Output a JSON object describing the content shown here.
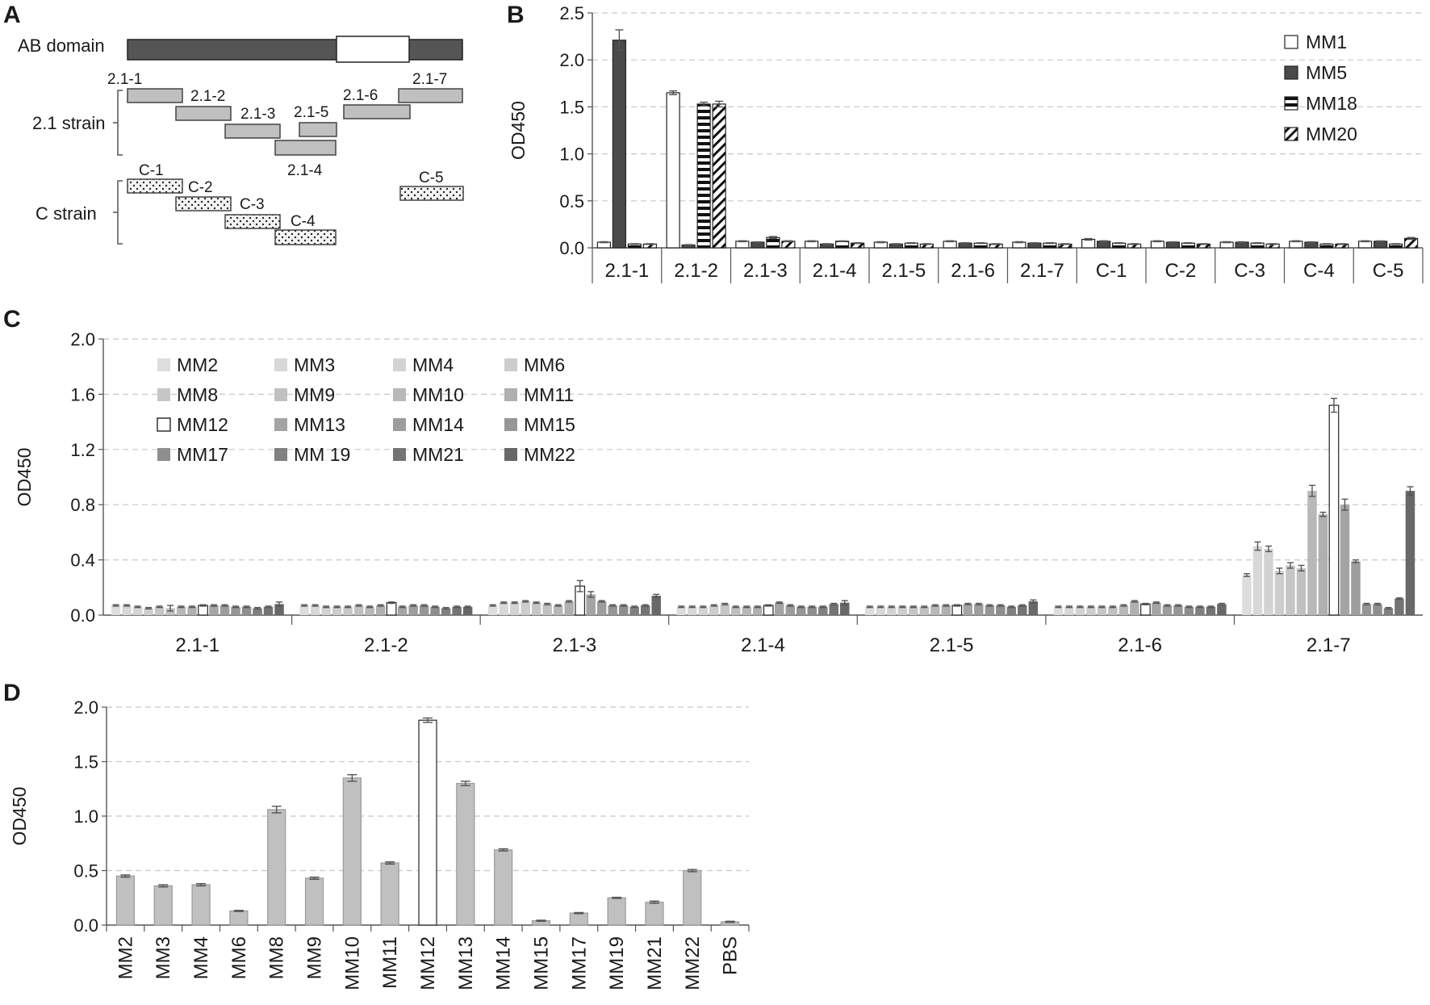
{
  "panel_letters": {
    "A": "A",
    "B": "B",
    "C": "C",
    "D": "D"
  },
  "panel_a": {
    "ab_label": "AB domain",
    "strain_21_label": "2.1 strain",
    "strain_c_label": "C strain",
    "segments_21": [
      "2.1-1",
      "2.1-2",
      "2.1-3",
      "2.1-4",
      "2.1-5",
      "2.1-6",
      "2.1-7"
    ],
    "segments_c": [
      "C-1",
      "C-2",
      "C-3",
      "C-4",
      "C-5"
    ],
    "colors": {
      "ab_bar": "#555555",
      "strain_21": "#c0c0c0",
      "strain_c": "#f4f4f4"
    }
  },
  "chart_data": [
    {
      "id": "B",
      "type": "bar",
      "ylabel": "OD450",
      "ylim": [
        0,
        2.5
      ],
      "yticks": [
        "0.0",
        "0.5",
        "1.0",
        "1.5",
        "2.0",
        "2.5"
      ],
      "grid": true,
      "legend_placement": "top-right",
      "categories": [
        "2.1-1",
        "2.1-2",
        "2.1-3",
        "2.1-4",
        "2.1-5",
        "2.1-6",
        "2.1-7",
        "C-1",
        "C-2",
        "C-3",
        "C-4",
        "C-5"
      ],
      "series": [
        {
          "name": "MM1",
          "pattern": "white",
          "values": [
            0.06,
            1.65,
            0.07,
            0.07,
            0.06,
            0.07,
            0.06,
            0.09,
            0.07,
            0.06,
            0.07,
            0.07
          ],
          "errors": [
            0.005,
            0.02,
            0.005,
            0.005,
            0.005,
            0.005,
            0.005,
            0.008,
            0.005,
            0.005,
            0.005,
            0.005
          ]
        },
        {
          "name": "MM5",
          "pattern": "dark",
          "values": [
            2.21,
            0.03,
            0.06,
            0.04,
            0.04,
            0.05,
            0.05,
            0.07,
            0.06,
            0.06,
            0.06,
            0.07
          ],
          "errors": [
            0.11,
            0.004,
            0.004,
            0.004,
            0.004,
            0.004,
            0.004,
            0.005,
            0.004,
            0.004,
            0.004,
            0.004
          ]
        },
        {
          "name": "MM18",
          "pattern": "hstripe",
          "values": [
            0.04,
            1.53,
            0.11,
            0.07,
            0.05,
            0.05,
            0.05,
            0.05,
            0.05,
            0.05,
            0.04,
            0.04
          ],
          "errors": [
            0.004,
            0.02,
            0.01,
            0.004,
            0.004,
            0.004,
            0.004,
            0.004,
            0.004,
            0.004,
            0.004,
            0.004
          ]
        },
        {
          "name": "MM20",
          "pattern": "diag",
          "values": [
            0.04,
            1.53,
            0.07,
            0.05,
            0.04,
            0.04,
            0.04,
            0.04,
            0.04,
            0.04,
            0.04,
            0.1
          ],
          "errors": [
            0.004,
            0.03,
            0.005,
            0.004,
            0.004,
            0.004,
            0.004,
            0.004,
            0.004,
            0.004,
            0.004,
            0.01
          ]
        }
      ]
    },
    {
      "id": "C",
      "type": "bar",
      "ylabel": "OD450",
      "ylim": [
        0,
        2.0
      ],
      "yticks": [
        "0.0",
        "0.4",
        "0.8",
        "1.2",
        "1.6",
        "2.0"
      ],
      "grid": true,
      "legend_placement": "top-left",
      "categories": [
        "2.1-1",
        "2.1-2",
        "2.1-3",
        "2.1-4",
        "2.1-5",
        "2.1-6",
        "2.1-7"
      ],
      "series": [
        {
          "name": "MM2",
          "color": "#dddddd",
          "values": [
            0.07,
            0.07,
            0.07,
            0.06,
            0.06,
            0.06,
            0.29
          ],
          "errors": [
            0.005,
            0.005,
            0.005,
            0.005,
            0.005,
            0.005,
            0.01
          ]
        },
        {
          "name": "MM3",
          "color": "#d8d8d8",
          "values": [
            0.07,
            0.07,
            0.09,
            0.06,
            0.06,
            0.06,
            0.5
          ],
          "errors": [
            0.005,
            0.005,
            0.005,
            0.005,
            0.005,
            0.005,
            0.03
          ]
        },
        {
          "name": "MM4",
          "color": "#d3d3d3",
          "values": [
            0.06,
            0.06,
            0.09,
            0.06,
            0.06,
            0.06,
            0.48
          ],
          "errors": [
            0.005,
            0.005,
            0.005,
            0.005,
            0.005,
            0.005,
            0.02
          ]
        },
        {
          "name": "MM6",
          "color": "#cdcdcd",
          "values": [
            0.05,
            0.06,
            0.1,
            0.07,
            0.06,
            0.06,
            0.32
          ],
          "errors": [
            0.005,
            0.005,
            0.005,
            0.005,
            0.005,
            0.005,
            0.02
          ]
        },
        {
          "name": "MM8",
          "color": "#c6c6c6",
          "values": [
            0.06,
            0.06,
            0.09,
            0.08,
            0.06,
            0.06,
            0.36
          ],
          "errors": [
            0.005,
            0.005,
            0.005,
            0.005,
            0.005,
            0.005,
            0.02
          ]
        },
        {
          "name": "MM9",
          "color": "#c0c0c0",
          "values": [
            0.05,
            0.07,
            0.08,
            0.06,
            0.06,
            0.06,
            0.34
          ],
          "errors": [
            0.02,
            0.005,
            0.005,
            0.005,
            0.005,
            0.005,
            0.02
          ]
        },
        {
          "name": "MM10",
          "color": "#b8b8b8",
          "values": [
            0.06,
            0.06,
            0.07,
            0.06,
            0.07,
            0.07,
            0.9
          ],
          "errors": [
            0.005,
            0.005,
            0.005,
            0.005,
            0.005,
            0.005,
            0.04
          ]
        },
        {
          "name": "MM11",
          "color": "#b0b0b0",
          "values": [
            0.06,
            0.07,
            0.1,
            0.06,
            0.07,
            0.1,
            0.73
          ],
          "errors": [
            0.005,
            0.005,
            0.005,
            0.005,
            0.005,
            0.005,
            0.015
          ]
        },
        {
          "name": "MM12",
          "color": "#ffffff",
          "values": [
            0.07,
            0.09,
            0.21,
            0.07,
            0.07,
            0.08,
            1.52
          ],
          "errors": [
            0.005,
            0.005,
            0.04,
            0.005,
            0.005,
            0.005,
            0.05
          ]
        },
        {
          "name": "MM13",
          "color": "#a4a4a4",
          "values": [
            0.07,
            0.06,
            0.15,
            0.09,
            0.08,
            0.09,
            0.8
          ],
          "errors": [
            0.005,
            0.005,
            0.02,
            0.005,
            0.005,
            0.005,
            0.04
          ]
        },
        {
          "name": "MM14",
          "color": "#9d9d9d",
          "values": [
            0.07,
            0.07,
            0.1,
            0.07,
            0.08,
            0.07,
            0.39
          ],
          "errors": [
            0.005,
            0.005,
            0.005,
            0.005,
            0.005,
            0.005,
            0.01
          ]
        },
        {
          "name": "MM15",
          "color": "#969696",
          "values": [
            0.06,
            0.07,
            0.07,
            0.06,
            0.07,
            0.07,
            0.08
          ],
          "errors": [
            0.005,
            0.005,
            0.005,
            0.005,
            0.005,
            0.005,
            0.005
          ]
        },
        {
          "name": "MM17",
          "color": "#8e8e8e",
          "values": [
            0.06,
            0.06,
            0.07,
            0.06,
            0.07,
            0.06,
            0.08
          ],
          "errors": [
            0.005,
            0.005,
            0.005,
            0.005,
            0.005,
            0.005,
            0.005
          ]
        },
        {
          "name": "MM 19",
          "color": "#808080",
          "values": [
            0.05,
            0.05,
            0.06,
            0.06,
            0.06,
            0.06,
            0.05
          ],
          "errors": [
            0.005,
            0.005,
            0.005,
            0.005,
            0.005,
            0.005,
            0.005
          ]
        },
        {
          "name": "MM21",
          "color": "#747474",
          "values": [
            0.06,
            0.06,
            0.07,
            0.08,
            0.07,
            0.06,
            0.12
          ],
          "errors": [
            0.005,
            0.005,
            0.005,
            0.005,
            0.005,
            0.005,
            0.005
          ]
        },
        {
          "name": "MM22",
          "color": "#686868",
          "values": [
            0.08,
            0.06,
            0.14,
            0.09,
            0.1,
            0.08,
            0.9
          ],
          "errors": [
            0.015,
            0.005,
            0.01,
            0.015,
            0.01,
            0.005,
            0.03
          ]
        }
      ]
    },
    {
      "id": "D",
      "type": "bar",
      "ylabel": "OD450",
      "ylim": [
        0,
        2.0
      ],
      "yticks": [
        "0.0",
        "0.5",
        "1.0",
        "1.5",
        "2.0"
      ],
      "grid": true,
      "categories": [
        "MM2",
        "MM3",
        "MM4",
        "MM6",
        "MM8",
        "MM9",
        "MM10",
        "MM11",
        "MM12",
        "MM13",
        "MM14",
        "MM15",
        "MM17",
        "MM19",
        "MM21",
        "MM22",
        "PBS"
      ],
      "values": [
        0.45,
        0.36,
        0.37,
        0.13,
        1.06,
        0.43,
        1.35,
        0.57,
        1.88,
        1.3,
        0.69,
        0.04,
        0.11,
        0.25,
        0.21,
        0.5,
        0.03
      ],
      "errors": [
        0.01,
        0.01,
        0.01,
        0.005,
        0.03,
        0.01,
        0.03,
        0.01,
        0.02,
        0.02,
        0.01,
        0.005,
        0.005,
        0.005,
        0.01,
        0.01,
        0.005
      ],
      "colors": {
        "default": "#c0c0c0",
        "highlight": "#ffffff"
      },
      "highlight_category": "MM12"
    }
  ]
}
